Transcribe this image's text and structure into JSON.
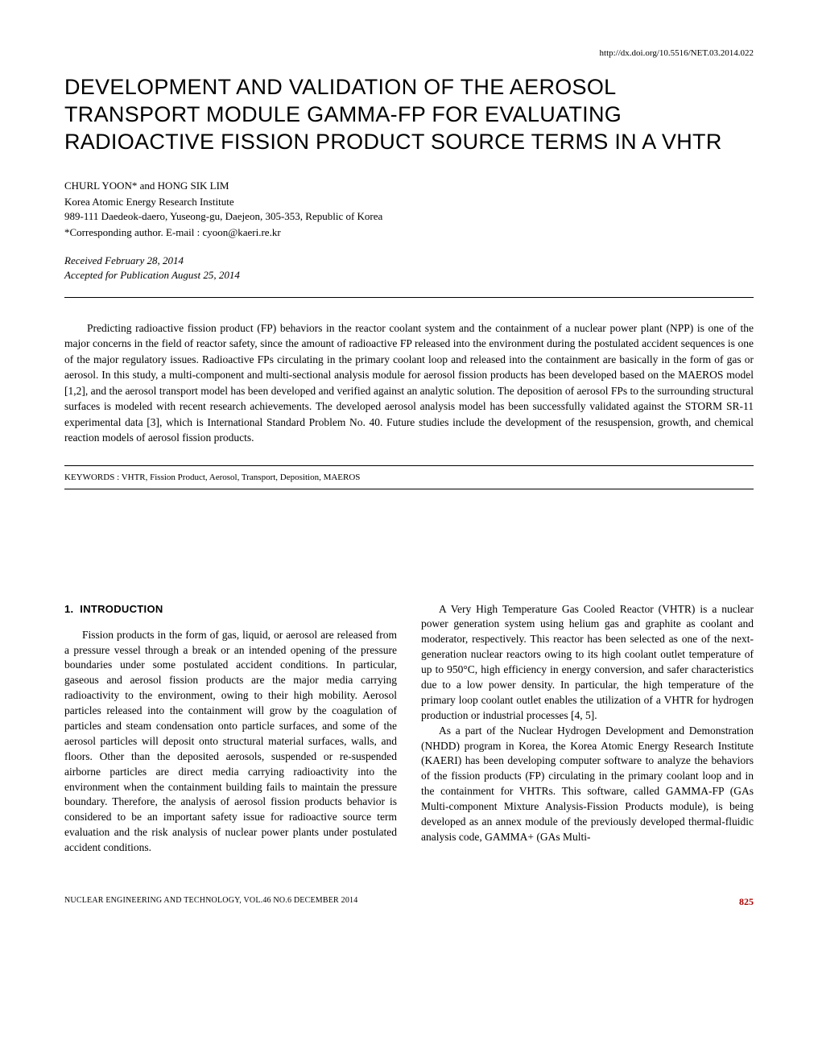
{
  "doi": "http://dx.doi.org/10.5516/NET.03.2014.022",
  "title": "DEVELOPMENT AND VALIDATION OF THE AEROSOL TRANSPORT MODULE GAMMA-FP FOR EVALUATING RADIOACTIVE FISSION PRODUCT SOURCE TERMS IN A VHTR",
  "authors": "CHURL YOON* and HONG SIK LIM",
  "affiliation_name": "Korea Atomic Energy Research Institute",
  "affiliation_address": "989-111 Daedeok-daero, Yuseong-gu, Daejeon, 305-353, Republic of Korea",
  "corresponding": "*Corresponding author. E-mail : cyoon@kaeri.re.kr",
  "received": "Received February 28, 2014",
  "accepted": "Accepted for Publication August 25, 2014",
  "abstract": "Predicting radioactive fission product (FP) behaviors in the reactor coolant system and the containment of a nuclear power plant (NPP) is one of the major concerns in the field of reactor safety, since the amount of radioactive FP released into the environment during the postulated accident sequences is one of the major regulatory issues. Radioactive FPs circulating in the primary coolant loop and released into the containment are basically in the form of gas or aerosol. In this study, a multi-component and multi-sectional analysis module for aerosol fission products has been developed based on the MAEROS model [1,2], and the aerosol transport model has been developed and verified against an analytic solution. The deposition of aerosol FPs to the surrounding structural surfaces is modeled with recent research achievements. The developed aerosol analysis model has been successfully validated against the STORM SR-11 experimental data [3], which is International Standard Problem No. 40. Future studies include the development of the resuspension, growth, and chemical reaction models of aerosol fission products.",
  "keywords": "KEYWORDS : VHTR, Fission Product, Aerosol, Transport, Deposition, MAEROS",
  "section_number": "1.",
  "section_title": "INTRODUCTION",
  "col1_para1": "Fission products in the form of gas, liquid, or aerosol are released from a pressure vessel through a break or an intended opening of the pressure boundaries under some postulated accident conditions. In particular, gaseous and aerosol fission products are the major media carrying radioactivity to the environment, owing to their high mobility. Aerosol particles released into the containment will grow by the coagulation of particles and steam condensation onto particle surfaces, and some of the aerosol particles will deposit onto structural material surfaces, walls, and floors. Other than the deposited aerosols, suspended or re-suspended airborne particles are direct media carrying radioactivity into the environment when the containment building fails to maintain the pressure boundary. Therefore, the analysis of aerosol fission products behavior is considered to be an important safety issue for radioactive source term evaluation and the risk analysis of nuclear power plants under postulated accident conditions.",
  "col2_para1": "A Very High Temperature Gas Cooled Reactor (VHTR) is a nuclear power generation system using helium gas and graphite as coolant and moderator, respectively. This reactor has been selected as one of the next-generation nuclear reactors owing to its high coolant outlet temperature of up to 950°C, high efficiency in energy conversion, and safer characteristics due to a low power density. In particular, the high temperature of the primary loop coolant outlet enables the utilization of a VHTR for hydrogen production or industrial processes [4, 5].",
  "col2_para2": "As a part of the Nuclear Hydrogen Development and Demonstration (NHDD) program in Korea, the Korea Atomic Energy Research Institute (KAERI) has been developing computer software to analyze the behaviors of the fission products (FP) circulating in the primary coolant loop and in the containment for VHTRs. This software, called GAMMA-FP (GAs Multi-component Mixture Analysis-Fission Products module), is being developed as an annex module of the previously developed thermal-fluidic analysis code, GAMMA+ (GAs Multi-",
  "journal": "NUCLEAR ENGINEERING AND TECHNOLOGY,  VOL.46  NO.6  DECEMBER 2014",
  "pagenum": "825"
}
